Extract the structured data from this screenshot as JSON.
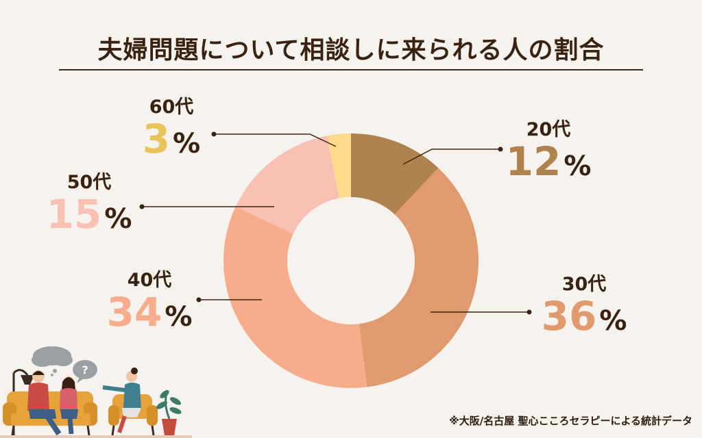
{
  "title": "夫婦問題について相談しに来られる人の割合",
  "source": "※大阪/名古屋 聖心こころセラピーによる統計データ",
  "percent_sign": "%",
  "chart_data": {
    "type": "pie",
    "title": "夫婦問題について相談しに来られる人の割合",
    "categories": [
      "20代",
      "30代",
      "40代",
      "50代",
      "60代"
    ],
    "values": [
      12,
      36,
      34,
      15,
      3
    ],
    "value_labels": [
      "12",
      "36",
      "34",
      "15",
      "3"
    ],
    "colors": [
      "#b0834e",
      "#e19a6d",
      "#f7ad8c",
      "#f8c1b4",
      "#fcdc8a"
    ],
    "label_colors": [
      "#b0834e",
      "#e19a6d",
      "#f7ad8c",
      "#f8c1b4",
      "#e9c45a"
    ],
    "donut": true,
    "legend": "none"
  },
  "illustration": {
    "speech_bubble_text": "?"
  }
}
